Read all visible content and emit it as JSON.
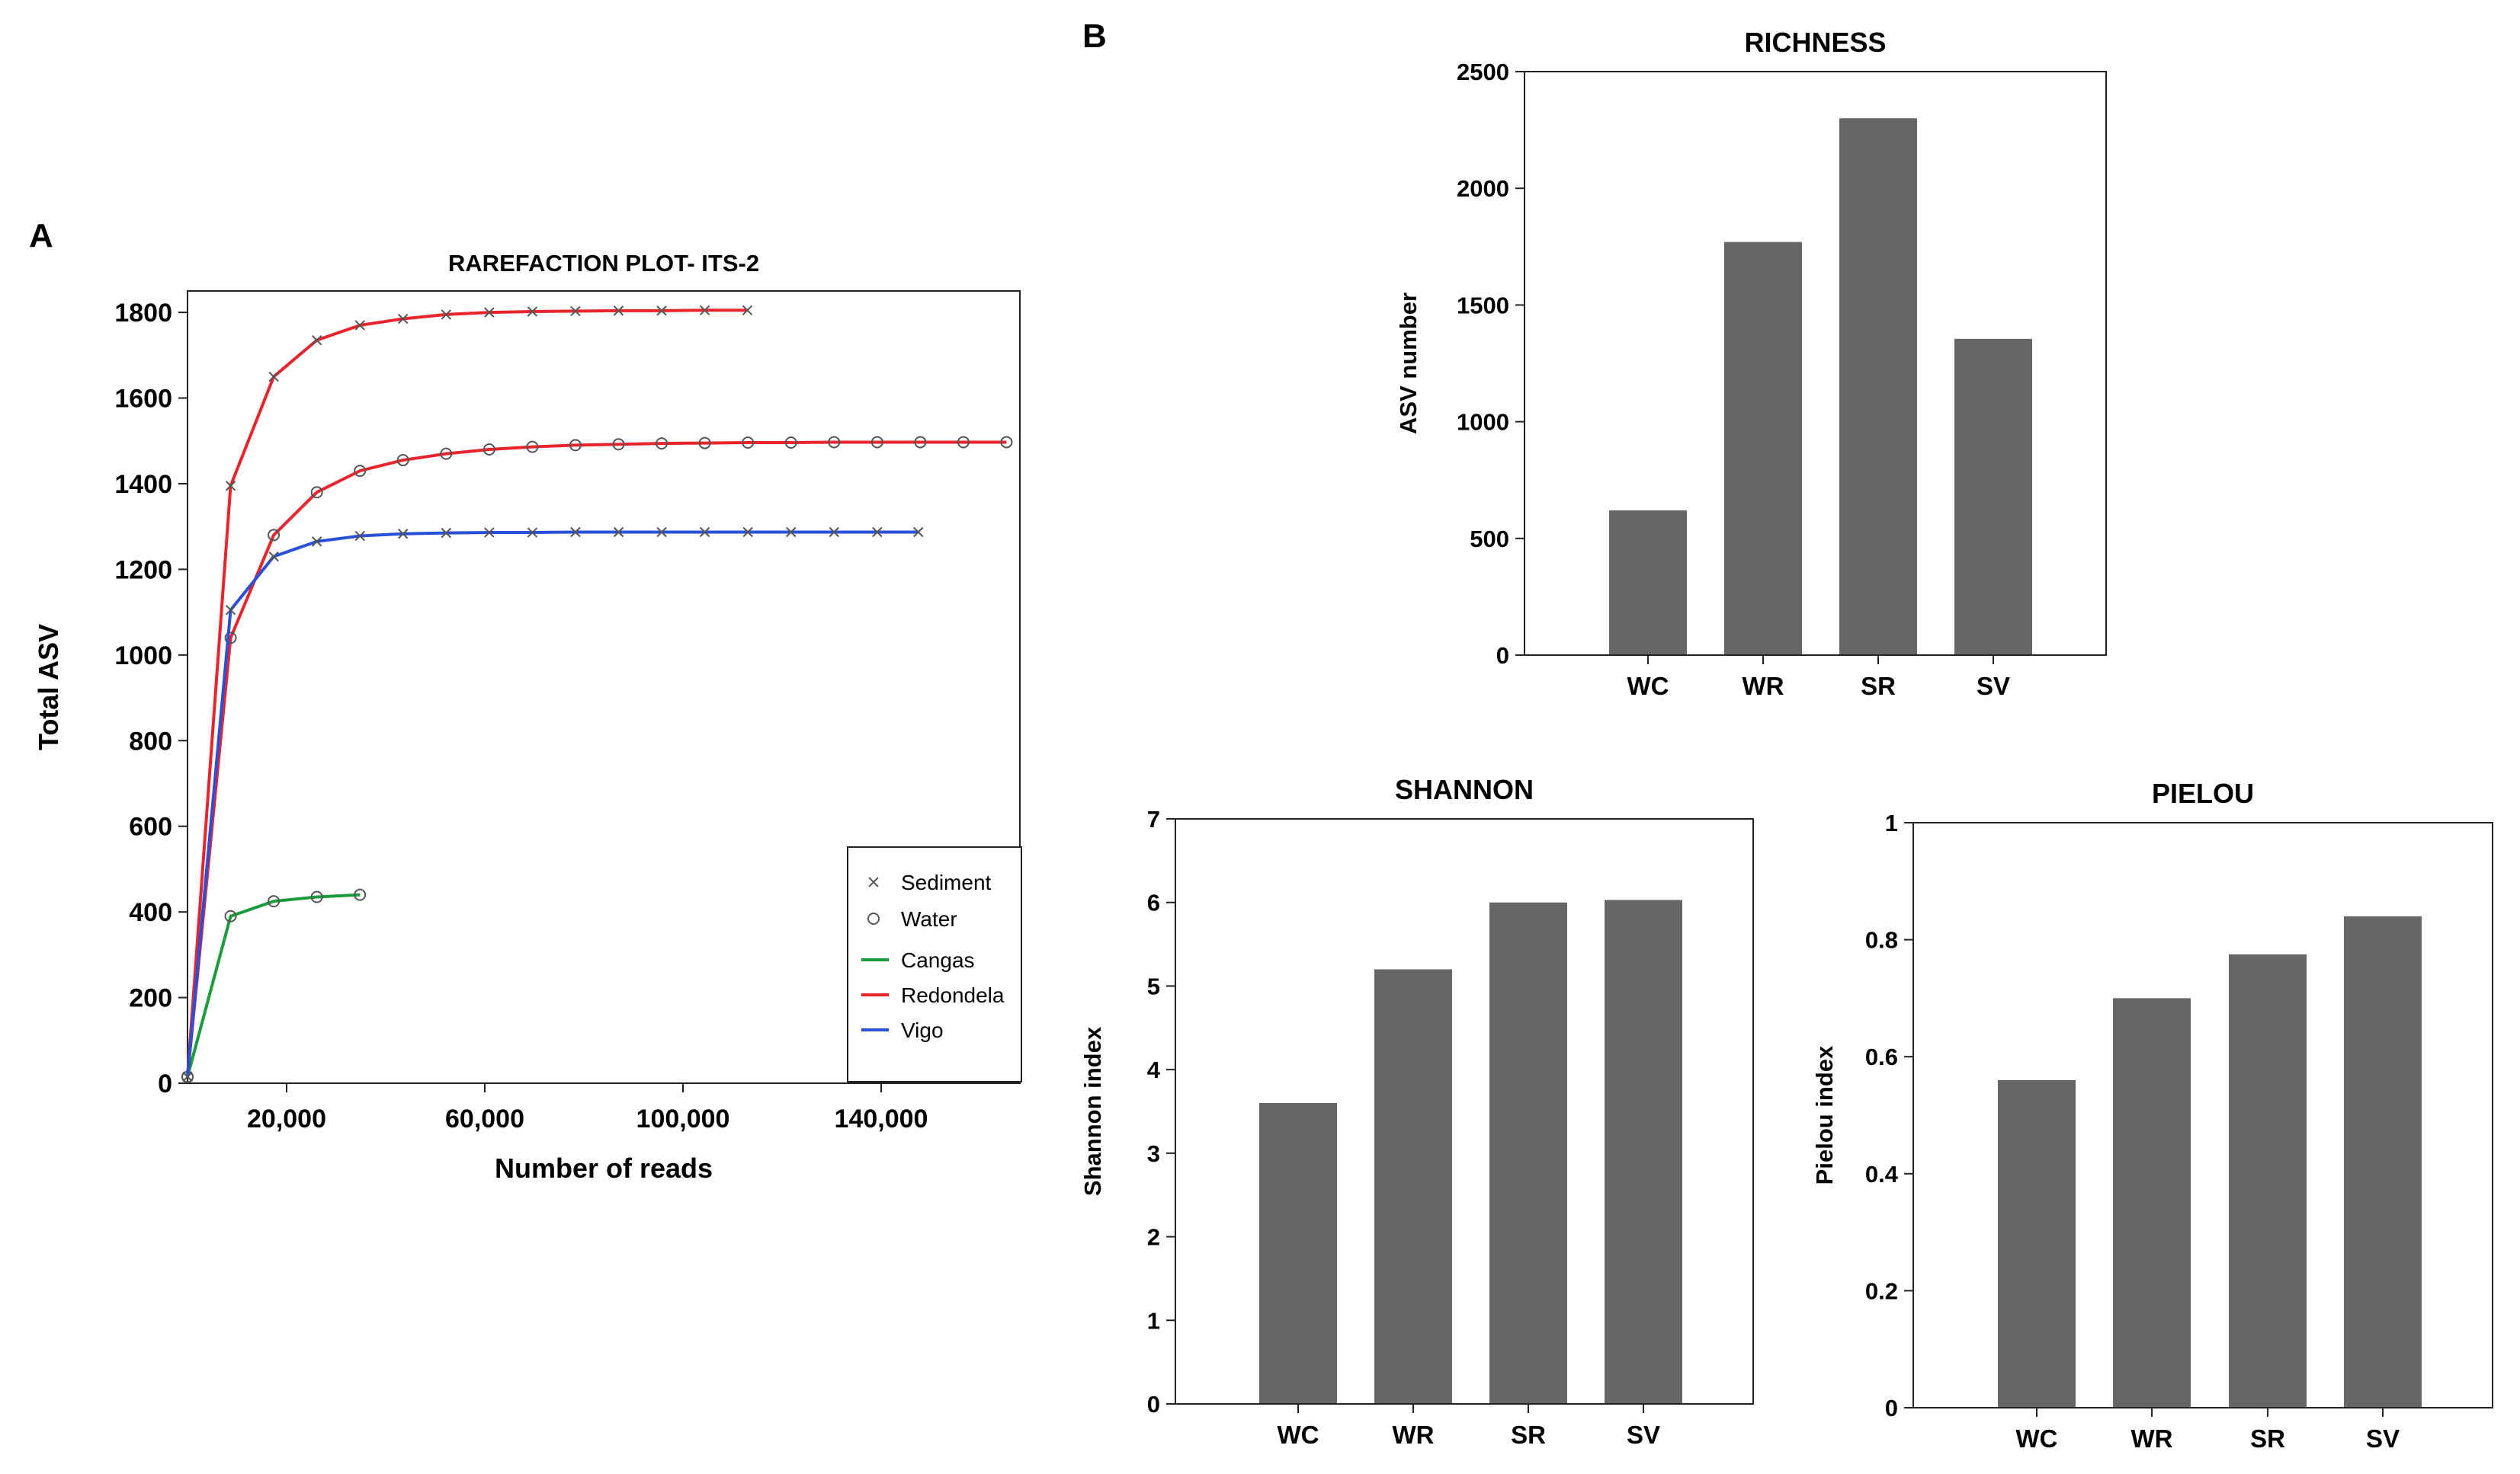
{
  "panels": {
    "a_label": "A",
    "b_label": "B"
  },
  "colors": {
    "cangas": "#1a9c3c",
    "redondela": "#e8242c",
    "vigo": "#2a4fd8",
    "bar": "#666666",
    "marker": "#555555"
  },
  "chart_data": [
    {
      "id": "rarefaction",
      "type": "line",
      "title": "RAREFACTION PLOT- ITS-2",
      "xlabel": "Number of reads",
      "ylabel": "Total ASV",
      "xlim": [
        0,
        168000
      ],
      "ylim": [
        0,
        1850
      ],
      "xticks": [
        20000,
        60000,
        100000,
        140000
      ],
      "xtick_labels": [
        "20,000",
        "60,000",
        "100,000",
        "140,000"
      ],
      "yticks": [
        0,
        200,
        400,
        600,
        800,
        1000,
        1200,
        1400,
        1600,
        1800
      ],
      "ytick_labels": [
        "0",
        "200",
        "400",
        "600",
        "800",
        "1000",
        "1200",
        "1400",
        "1600",
        "1800"
      ],
      "legend": {
        "position": "bottom-right",
        "markers": [
          {
            "symbol": "x",
            "label": "Sediment"
          },
          {
            "symbol": "o",
            "label": "Water"
          }
        ],
        "lines": [
          {
            "color_key": "cangas",
            "label": "Cangas"
          },
          {
            "color_key": "redondela",
            "label": "Redondela"
          },
          {
            "color_key": "vigo",
            "label": "Vigo"
          }
        ]
      },
      "series": [
        {
          "name": "Cangas Water",
          "site": "cangas",
          "marker": "o",
          "x": [
            0,
            8700,
            17400,
            26100,
            34800
          ],
          "y": [
            15,
            390,
            425,
            435,
            440
          ]
        },
        {
          "name": "Redondela Sediment",
          "site": "redondela",
          "marker": "x",
          "x": [
            0,
            8700,
            17400,
            26100,
            34800,
            43500,
            52200,
            60900,
            69600,
            78300,
            87000,
            95700,
            104400,
            113000
          ],
          "y": [
            15,
            1395,
            1650,
            1735,
            1770,
            1785,
            1795,
            1800,
            1802,
            1803,
            1804,
            1804,
            1805,
            1805
          ]
        },
        {
          "name": "Redondela Water",
          "site": "redondela",
          "marker": "o",
          "x": [
            0,
            8700,
            17400,
            26100,
            34800,
            43500,
            52200,
            60900,
            69600,
            78300,
            87000,
            95700,
            104400,
            113100,
            121800,
            130500,
            139200,
            147900,
            156600,
            165300
          ],
          "y": [
            15,
            1040,
            1280,
            1380,
            1430,
            1455,
            1470,
            1480,
            1486,
            1490,
            1492,
            1494,
            1495,
            1496,
            1496,
            1497,
            1497,
            1497,
            1497,
            1497
          ]
        },
        {
          "name": "Vigo Sediment",
          "site": "vigo",
          "marker": "x",
          "x": [
            0,
            8700,
            17400,
            26100,
            34800,
            43500,
            52200,
            60900,
            69600,
            78300,
            87000,
            95700,
            104400,
            113100,
            121800,
            130500,
            139200,
            147500
          ],
          "y": [
            15,
            1105,
            1230,
            1265,
            1278,
            1283,
            1285,
            1286,
            1286,
            1287,
            1287,
            1287,
            1287,
            1287,
            1287,
            1287,
            1287,
            1287
          ]
        }
      ]
    },
    {
      "id": "richness",
      "type": "bar",
      "title": "RICHNESS",
      "xlabel": "",
      "ylabel": "ASV number",
      "categories": [
        "WC",
        "WR",
        "SR",
        "SV"
      ],
      "values": [
        620,
        1770,
        2300,
        1355
      ],
      "ylim": [
        0,
        2500
      ],
      "yticks": [
        0,
        500,
        1000,
        1500,
        2000,
        2500
      ],
      "ytick_labels": [
        "0",
        "500",
        "1000",
        "1500",
        "2000",
        "2500"
      ]
    },
    {
      "id": "shannon",
      "type": "bar",
      "title": "SHANNON",
      "xlabel": "",
      "ylabel": "Shannon index",
      "categories": [
        "WC",
        "WR",
        "SR",
        "SV"
      ],
      "values": [
        3.6,
        5.2,
        6.0,
        6.03
      ],
      "ylim": [
        0,
        7
      ],
      "yticks": [
        0,
        1,
        2,
        3,
        4,
        5,
        6,
        7
      ],
      "ytick_labels": [
        "0",
        "1",
        "2",
        "3",
        "4",
        "5",
        "6",
        "7"
      ]
    },
    {
      "id": "pielou",
      "type": "bar",
      "title": "PIELOU",
      "xlabel": "",
      "ylabel": "Pielou index",
      "categories": [
        "WC",
        "WR",
        "SR",
        "SV"
      ],
      "values": [
        0.56,
        0.7,
        0.775,
        0.84
      ],
      "ylim": [
        0,
        1
      ],
      "yticks": [
        0,
        0.2,
        0.4,
        0.6,
        0.8,
        1
      ],
      "ytick_labels": [
        "0",
        "0.2",
        "0.4",
        "0.6",
        "0.8",
        "1"
      ]
    }
  ]
}
